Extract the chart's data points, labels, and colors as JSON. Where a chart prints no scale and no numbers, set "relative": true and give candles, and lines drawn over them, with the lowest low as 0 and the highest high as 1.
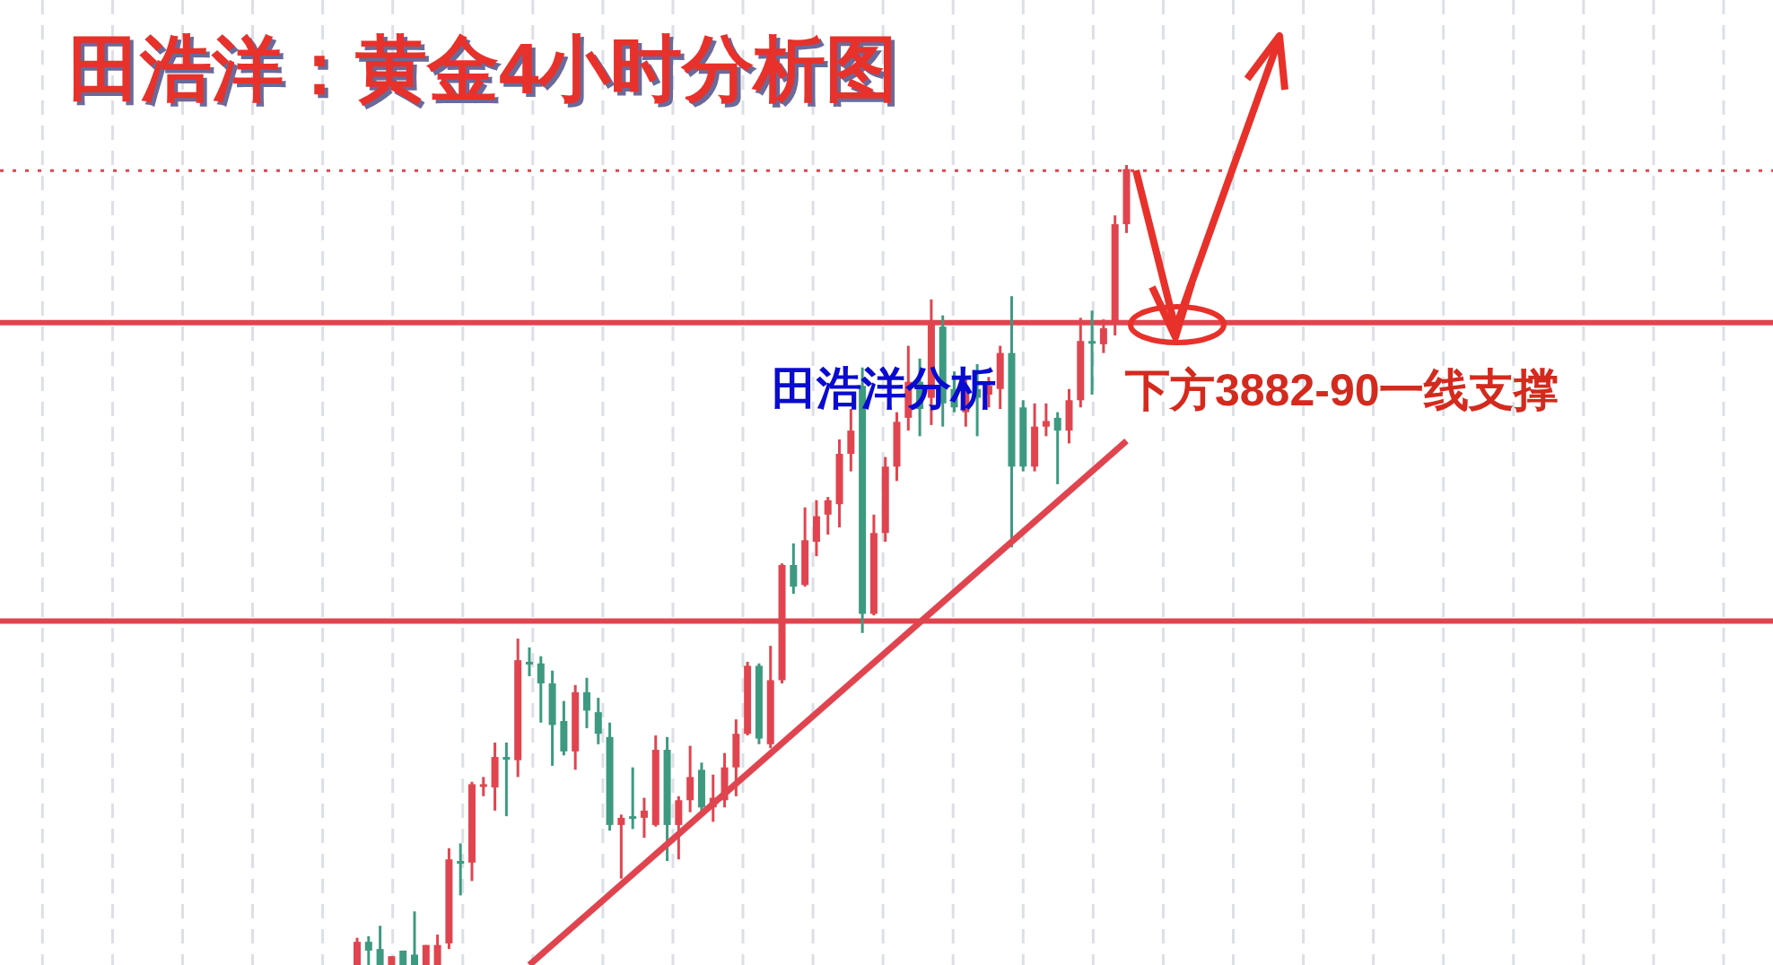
{
  "chart_data": {
    "type": "candlestick",
    "title": "田浩洋：黄金4小时分析图",
    "relative": true,
    "grid": "x",
    "categories": [
      null,
      null,
      null,
      null,
      null,
      null,
      null,
      null,
      null,
      null,
      null,
      null,
      null,
      null,
      null,
      null,
      null,
      null,
      null,
      null,
      null,
      null,
      null,
      null,
      null,
      null,
      null,
      null,
      null,
      null,
      null,
      null,
      null,
      null,
      null,
      null,
      null,
      null,
      null,
      null,
      null,
      null,
      null,
      null,
      null,
      null,
      null,
      null,
      null,
      null,
      null,
      null,
      null,
      null,
      null,
      null,
      null,
      null,
      null,
      null,
      null,
      null,
      null,
      null,
      null,
      null,
      null,
      null
    ],
    "annotations": [
      "田浩洋分析",
      "下方3882-90一线支撑"
    ],
    "ref_lines": [
      {
        "axis": "y",
        "value": 0.803,
        "color": "#e0454f",
        "line_style": "solid"
      },
      {
        "axis": "y",
        "value": 0.43,
        "color": "#e0454f",
        "line_style": "solid"
      },
      {
        "axis": "y",
        "value": 0.993,
        "color": "#e0454f",
        "line_style": "dotted"
      }
    ],
    "series": [
      {
        "colors": [
          "#e0454f",
          "#3d9a80",
          "#3d9a80",
          "#e0454f",
          "#3d9a80",
          "#3d9a80",
          "#e0454f",
          "#e0454f",
          "#e0454f",
          "#3d9a80",
          "#e0454f",
          "#e0454f",
          "#e0454f",
          "#3d9a80",
          "#e0454f",
          "#3d9a80",
          "#3d9a80",
          "#3d9a80",
          "#3d9a80",
          "#e0454f",
          "#3d9a80",
          "#3d9a80",
          "#3d9a80",
          "#e0454f",
          "#3d9a80",
          "#e0454f",
          "#e0454f",
          "#3d9a80",
          "#e0454f",
          "#e0454f",
          "#3d9a80",
          "#e0454f",
          "#e0454f",
          "#e0454f",
          "#e0454f",
          "#3d9a80",
          "#e0454f",
          "#e0454f",
          "#3d9a80",
          "#e0454f",
          "#e0454f",
          "#e0454f",
          "#e0454f",
          "#e0454f",
          "#3d9a80",
          "#e0454f",
          "#e0454f",
          "#e0454f",
          "#e0454f",
          "#3d9a80",
          "#e0454f",
          "#3d9a80",
          "#3d9a80",
          "#e0454f",
          "#3d9a80",
          "#e0454f",
          "#e0454f",
          "#3d9a80",
          "#3d9a80",
          "#e0454f",
          "#e0454f",
          "#3d9a80",
          "#e0454f",
          "#e0454f",
          "#3d9a80",
          "#e0454f",
          "#e0454f",
          "#e0454f"
        ],
        "ohlc": [
          [
            0,
            0.034,
            0,
            0.029
          ],
          [
            0.029,
            0.036,
            0,
            0.018
          ],
          [
            0.02,
            0.049,
            0,
            0
          ],
          [
            0,
            0.011,
            0,
            0.011
          ],
          [
            0.018,
            0.018,
            0,
            0
          ],
          [
            0.013,
            0.067,
            0,
            0
          ],
          [
            0,
            0.025,
            0,
            0.025
          ],
          [
            0,
            0.038,
            0,
            0.025
          ],
          [
            0.027,
            0.146,
            0.02,
            0.132
          ],
          [
            0.13,
            0.152,
            0.087,
            0.128
          ],
          [
            0.128,
            0.229,
            0.105,
            0.226
          ],
          [
            0.224,
            0.235,
            0.211,
            0.226
          ],
          [
            0.222,
            0.278,
            0.193,
            0.26
          ],
          [
            0.26,
            0.278,
            0.186,
            0.258
          ],
          [
            0.256,
            0.408,
            0.235,
            0.381
          ],
          [
            0.379,
            0.397,
            0.361,
            0.377
          ],
          [
            0.377,
            0.386,
            0.303,
            0.352
          ],
          [
            0.352,
            0.368,
            0.249,
            0.3
          ],
          [
            0.305,
            0.33,
            0.262,
            0.267
          ],
          [
            0.267,
            0.35,
            0.244,
            0.341
          ],
          [
            0.341,
            0.359,
            0.296,
            0.318
          ],
          [
            0.316,
            0.334,
            0.276,
            0.289
          ],
          [
            0.285,
            0.303,
            0.168,
            0.175
          ],
          [
            0.175,
            0.188,
            0.108,
            0.184
          ],
          [
            0.186,
            0.247,
            0.17,
            0.184
          ],
          [
            0.184,
            0.209,
            0.159,
            0.193
          ],
          [
            0.175,
            0.287,
            0.173,
            0.269
          ],
          [
            0.269,
            0.285,
            0.13,
            0.175
          ],
          [
            0.175,
            0.211,
            0.132,
            0.206
          ],
          [
            0.206,
            0.274,
            0.191,
            0.235
          ],
          [
            0.244,
            0.253,
            0.191,
            0.197
          ],
          [
            0.197,
            0.238,
            0.179,
            0.209
          ],
          [
            0.206,
            0.265,
            0.197,
            0.247
          ],
          [
            0.247,
            0.307,
            0.211,
            0.289
          ],
          [
            0.289,
            0.379,
            0.287,
            0.374
          ],
          [
            0.374,
            0.377,
            0.276,
            0.283
          ],
          [
            0.276,
            0.399,
            0.271,
            0.356
          ],
          [
            0.356,
            0.502,
            0.352,
            0.5
          ],
          [
            0.5,
            0.527,
            0.464,
            0.473
          ],
          [
            0.475,
            0.572,
            0.473,
            0.531
          ],
          [
            0.529,
            0.581,
            0.511,
            0.561
          ],
          [
            0.563,
            0.585,
            0.538,
            0.581
          ],
          [
            0.576,
            0.657,
            0.547,
            0.639
          ],
          [
            0.639,
            0.695,
            0.617,
            0.668
          ],
          [
            0.724,
            0.747,
            0.415,
            0.439
          ],
          [
            0.439,
            0.563,
            0.437,
            0.54
          ],
          [
            0.54,
            0.635,
            0.529,
            0.623
          ],
          [
            0.623,
            0.691,
            0.605,
            0.679
          ],
          [
            0.684,
            0.774,
            0.668,
            0.729
          ],
          [
            0.729,
            0.758,
            0.661,
            0.695
          ],
          [
            0.709,
            0.832,
            0.675,
            0.803
          ],
          [
            0.798,
            0.812,
            0.673,
            0.702
          ],
          [
            0.72,
            0.742,
            0.691,
            0.697
          ],
          [
            0.691,
            0.735,
            0.673,
            0.713
          ],
          [
            0.72,
            0.751,
            0.661,
            0.709
          ],
          [
            0.713,
            0.735,
            0.697,
            0.724
          ],
          [
            0.72,
            0.774,
            0.695,
            0.765
          ],
          [
            0.765,
            0.836,
            0.522,
            0.623
          ],
          [
            0.697,
            0.706,
            0.617,
            0.623
          ],
          [
            0.623,
            0.702,
            0.617,
            0.673
          ],
          [
            0.673,
            0.702,
            0.661,
            0.68
          ],
          [
            0.684,
            0.691,
            0.601,
            0.668
          ],
          [
            0.668,
            0.72,
            0.652,
            0.706
          ],
          [
            0.706,
            0.809,
            0.697,
            0.78
          ],
          [
            0.78,
            0.818,
            0.713,
            0.778
          ],
          [
            0.776,
            0.807,
            0.765,
            0.796
          ],
          [
            0.803,
            0.937,
            0.787,
            0.926
          ],
          [
            0.926,
            1,
            0.915,
            0.995
          ]
        ]
      },
      {
        "type": "line",
        "color": "#e0454f",
        "values": [
          null,
          null,
          null,
          null,
          null,
          null,
          null,
          null,
          null,
          null,
          null,
          null,
          null,
          null,
          null,
          0,
          null,
          null,
          null,
          null,
          null,
          null,
          null,
          null,
          null,
          null,
          null,
          null,
          null,
          null,
          null,
          null,
          null,
          null,
          null,
          null,
          null,
          null,
          null,
          null,
          null,
          null,
          null,
          null,
          null,
          null,
          null,
          null,
          null,
          null,
          null,
          null,
          null,
          null,
          null,
          null,
          null,
          null,
          null,
          null,
          null,
          null,
          null,
          null,
          null,
          null,
          null,
          0.655
        ]
      }
    ]
  }
}
